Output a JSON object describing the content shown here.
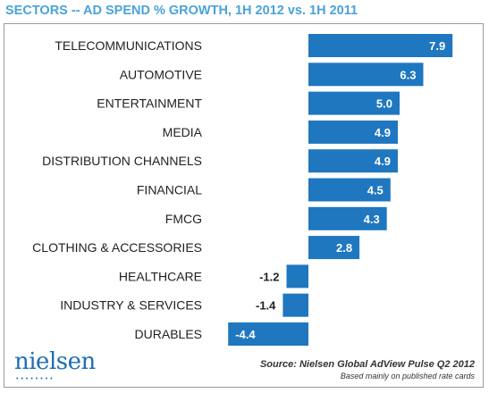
{
  "title": "SECTORS -- AD SPEND % GROWTH, 1H 2012 vs. 1H 2011",
  "logo_text": "nielsen",
  "logo_dots": "••••••••",
  "source": "Source: Nielsen Global AdView Pulse Q2 2012",
  "note": "Based mainly on published rate cards",
  "colors": {
    "title": "#4aa3d8",
    "bar": "#1f77c0",
    "frame": "#9a9a9a",
    "logo": "#1f6eb5"
  },
  "chart_data": {
    "type": "bar",
    "orientation": "horizontal",
    "title": "SECTORS -- AD SPEND % GROWTH, 1H 2012 vs. 1H 2011",
    "categories": [
      "TELECOMMUNICATIONS",
      "AUTOMOTIVE",
      "ENTERTAINMENT",
      "MEDIA",
      "DISTRIBUTION CHANNELS",
      "FINANCIAL",
      "FMCG",
      "CLOTHING & ACCESSORIES",
      "HEALTHCARE",
      "INDUSTRY & SERVICES",
      "DURABLES"
    ],
    "values": [
      7.9,
      6.3,
      5.0,
      4.9,
      4.9,
      4.5,
      4.3,
      2.8,
      -1.2,
      -1.4,
      -4.4
    ],
    "labels": [
      "7.9",
      "6.3",
      "5.0",
      "4.9",
      "4.9",
      "4.5",
      "4.3",
      "2.8",
      "-1.2",
      "-1.4",
      "-4.4"
    ],
    "xlabel": "",
    "ylabel": "",
    "grid": false,
    "legend": false
  }
}
